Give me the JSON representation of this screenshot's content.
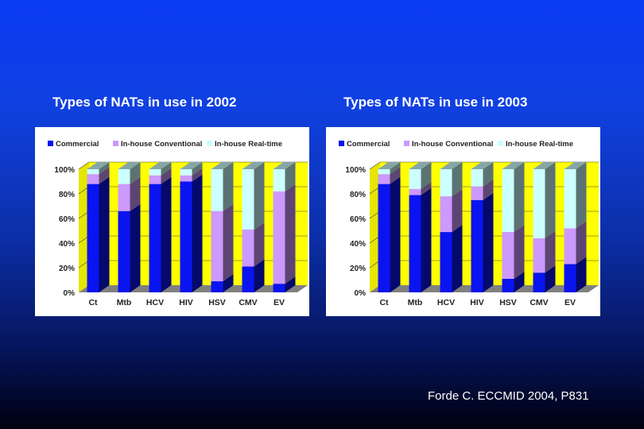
{
  "citation": "Forde C. ECCMID 2004, P831",
  "colors": {
    "commercial": "#0a14f0",
    "conventional": "#cc99ff",
    "realtime": "#ccffff",
    "wall": "#ffff00",
    "floor": "#808080"
  },
  "chart_data": [
    {
      "type": "bar",
      "stacked": true,
      "percent": true,
      "title": "Types of NATs in use in 2002",
      "categories": [
        "Ct",
        "Mtb",
        "HCV",
        "HIV",
        "HSV",
        "CMV",
        "EV"
      ],
      "y_ticks": [
        "0%",
        "20%",
        "40%",
        "60%",
        "80%",
        "100%"
      ],
      "ylim": [
        0,
        100
      ],
      "legend_position": "top",
      "series": [
        {
          "name": "Commercial",
          "values": [
            88,
            66,
            88,
            90,
            9,
            21,
            7
          ]
        },
        {
          "name": "In-house Conventional",
          "values": [
            8,
            22,
            7,
            5,
            57,
            30,
            75
          ]
        },
        {
          "name": "In-house Real-time",
          "values": [
            4,
            12,
            5,
            5,
            34,
            49,
            18
          ]
        }
      ]
    },
    {
      "type": "bar",
      "stacked": true,
      "percent": true,
      "title": "Types of NATs in use in 2003",
      "categories": [
        "Ct",
        "Mtb",
        "HCV",
        "HIV",
        "HSV",
        "CMV",
        "EV"
      ],
      "y_ticks": [
        "0%",
        "20%",
        "40%",
        "60%",
        "80%",
        "100%"
      ],
      "ylim": [
        0,
        100
      ],
      "legend_position": "top",
      "series": [
        {
          "name": "Commercial",
          "values": [
            88,
            79,
            49,
            75,
            11,
            16,
            23
          ]
        },
        {
          "name": "In-house Conventional",
          "values": [
            8,
            5,
            29,
            11,
            38,
            28,
            29
          ]
        },
        {
          "name": "In-house Real-time",
          "values": [
            4,
            16,
            22,
            14,
            51,
            56,
            48
          ]
        }
      ]
    }
  ]
}
